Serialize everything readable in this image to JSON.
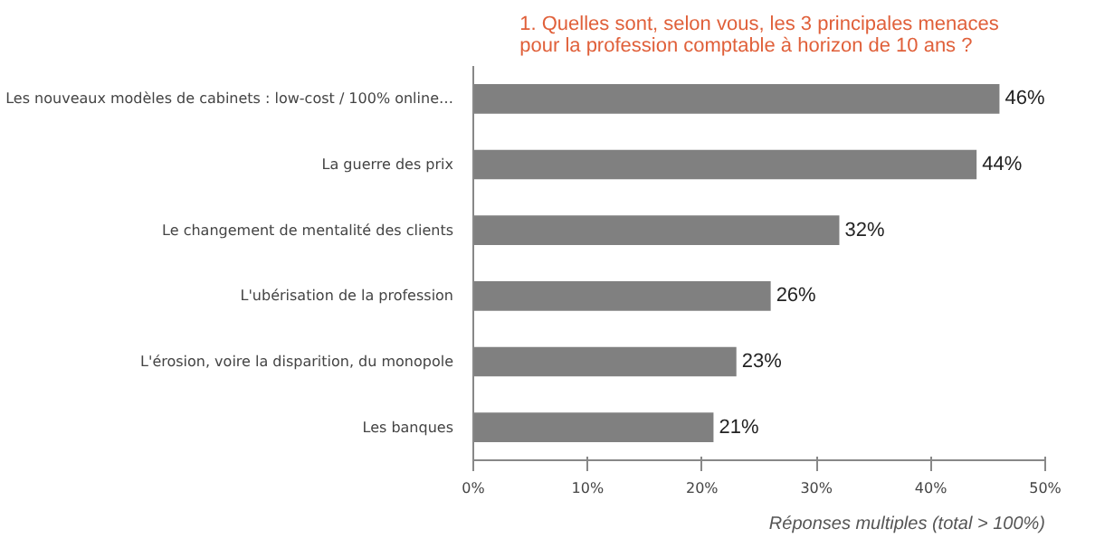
{
  "chart_data": {
    "type": "bar",
    "orientation": "horizontal",
    "title": "1. Quelles sont, selon vous, les 3 principales menaces pour la profession comptable à horizon de 10 ans ?",
    "categories": [
      "Les nouveaux modèles de cabinets : low-cost / 100% online…",
      "La guerre des prix",
      "Le changement de mentalité des clients",
      "L'ubérisation de la profession",
      "L'érosion, voire la disparition, du monopole",
      "Les banques"
    ],
    "values": [
      46,
      44,
      32,
      26,
      23,
      21
    ],
    "color": "#808080",
    "xlim": [
      0,
      50
    ],
    "xticks": [
      {
        "value": 0,
        "label": "0%"
      },
      {
        "value": 10,
        "label": "10%"
      },
      {
        "value": 20,
        "label": "20%"
      },
      {
        "value": 30,
        "label": "30%"
      },
      {
        "value": 40,
        "label": "40%"
      },
      {
        "value": 50,
        "label": "50%"
      }
    ],
    "value_labels": [
      "46%",
      "44%",
      "32%",
      "26%",
      "23%",
      "21%"
    ],
    "grid": false,
    "annotations": [
      "Réponses multiples (total > 100%)"
    ]
  }
}
